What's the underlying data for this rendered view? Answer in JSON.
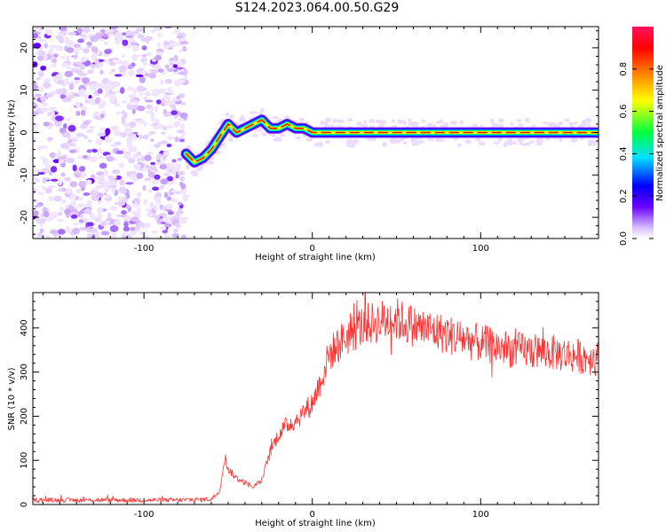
{
  "title": "S124.2023.064.00.50.G29",
  "chart_data": [
    {
      "type": "heatmap",
      "xlabel": "Height of straight line (km)",
      "ylabel": "Frequency (Hz)",
      "xlim": [
        -166,
        170
      ],
      "ylim": [
        -25,
        25
      ],
      "xticks": [
        -100,
        0,
        100
      ],
      "yticks": [
        -20,
        -10,
        0,
        10,
        20
      ],
      "colorbar": {
        "label": "Normalized spectral amplitude",
        "range": [
          0,
          1
        ],
        "ticks": [
          "0.0",
          "0.2",
          "0.4",
          "0.6",
          "0.8"
        ],
        "colormap": [
          "#ffffff",
          "#e0c8ff",
          "#7000ff",
          "#0000ff",
          "#00e0ff",
          "#00ff40",
          "#ffff00",
          "#ff8000",
          "#ff0000",
          "#ff1060"
        ]
      },
      "noise_region_x": [
        -166,
        -75
      ],
      "ridge": {
        "x": [
          -75,
          -70,
          -65,
          -60,
          -55,
          -50,
          -45,
          -40,
          -35,
          -30,
          -25,
          -20,
          -15,
          -10,
          -5,
          0,
          20,
          40,
          60,
          80,
          100,
          120,
          140,
          160,
          170
        ],
        "freq": [
          -5,
          -7,
          -6,
          -4,
          -1,
          2,
          0,
          1,
          2,
          3,
          1,
          1,
          2,
          1,
          1,
          0,
          0,
          0,
          0,
          0,
          0,
          0,
          0,
          0,
          0
        ]
      }
    },
    {
      "type": "line",
      "xlabel": "Height of straight line (km)",
      "ylabel": "SNR (10 * v/v)",
      "xlim": [
        -166,
        170
      ],
      "ylim": [
        0,
        480
      ],
      "xticks": [
        -100,
        0,
        100
      ],
      "yticks": [
        0,
        100,
        200,
        300,
        400
      ],
      "color": "#ff3030",
      "envelope": {
        "x": [
          -166,
          -140,
          -110,
          -80,
          -60,
          -55,
          -52,
          -50,
          -45,
          -40,
          -35,
          -30,
          -25,
          -20,
          -15,
          -10,
          -5,
          0,
          5,
          10,
          20,
          30,
          40,
          50,
          60,
          80,
          100,
          120,
          140,
          160,
          170
        ],
        "y": [
          10,
          10,
          10,
          10,
          12,
          30,
          110,
          80,
          60,
          50,
          40,
          55,
          120,
          160,
          180,
          190,
          210,
          230,
          280,
          340,
          380,
          405,
          415,
          420,
          405,
          385,
          365,
          350,
          345,
          335,
          330
        ]
      }
    }
  ]
}
